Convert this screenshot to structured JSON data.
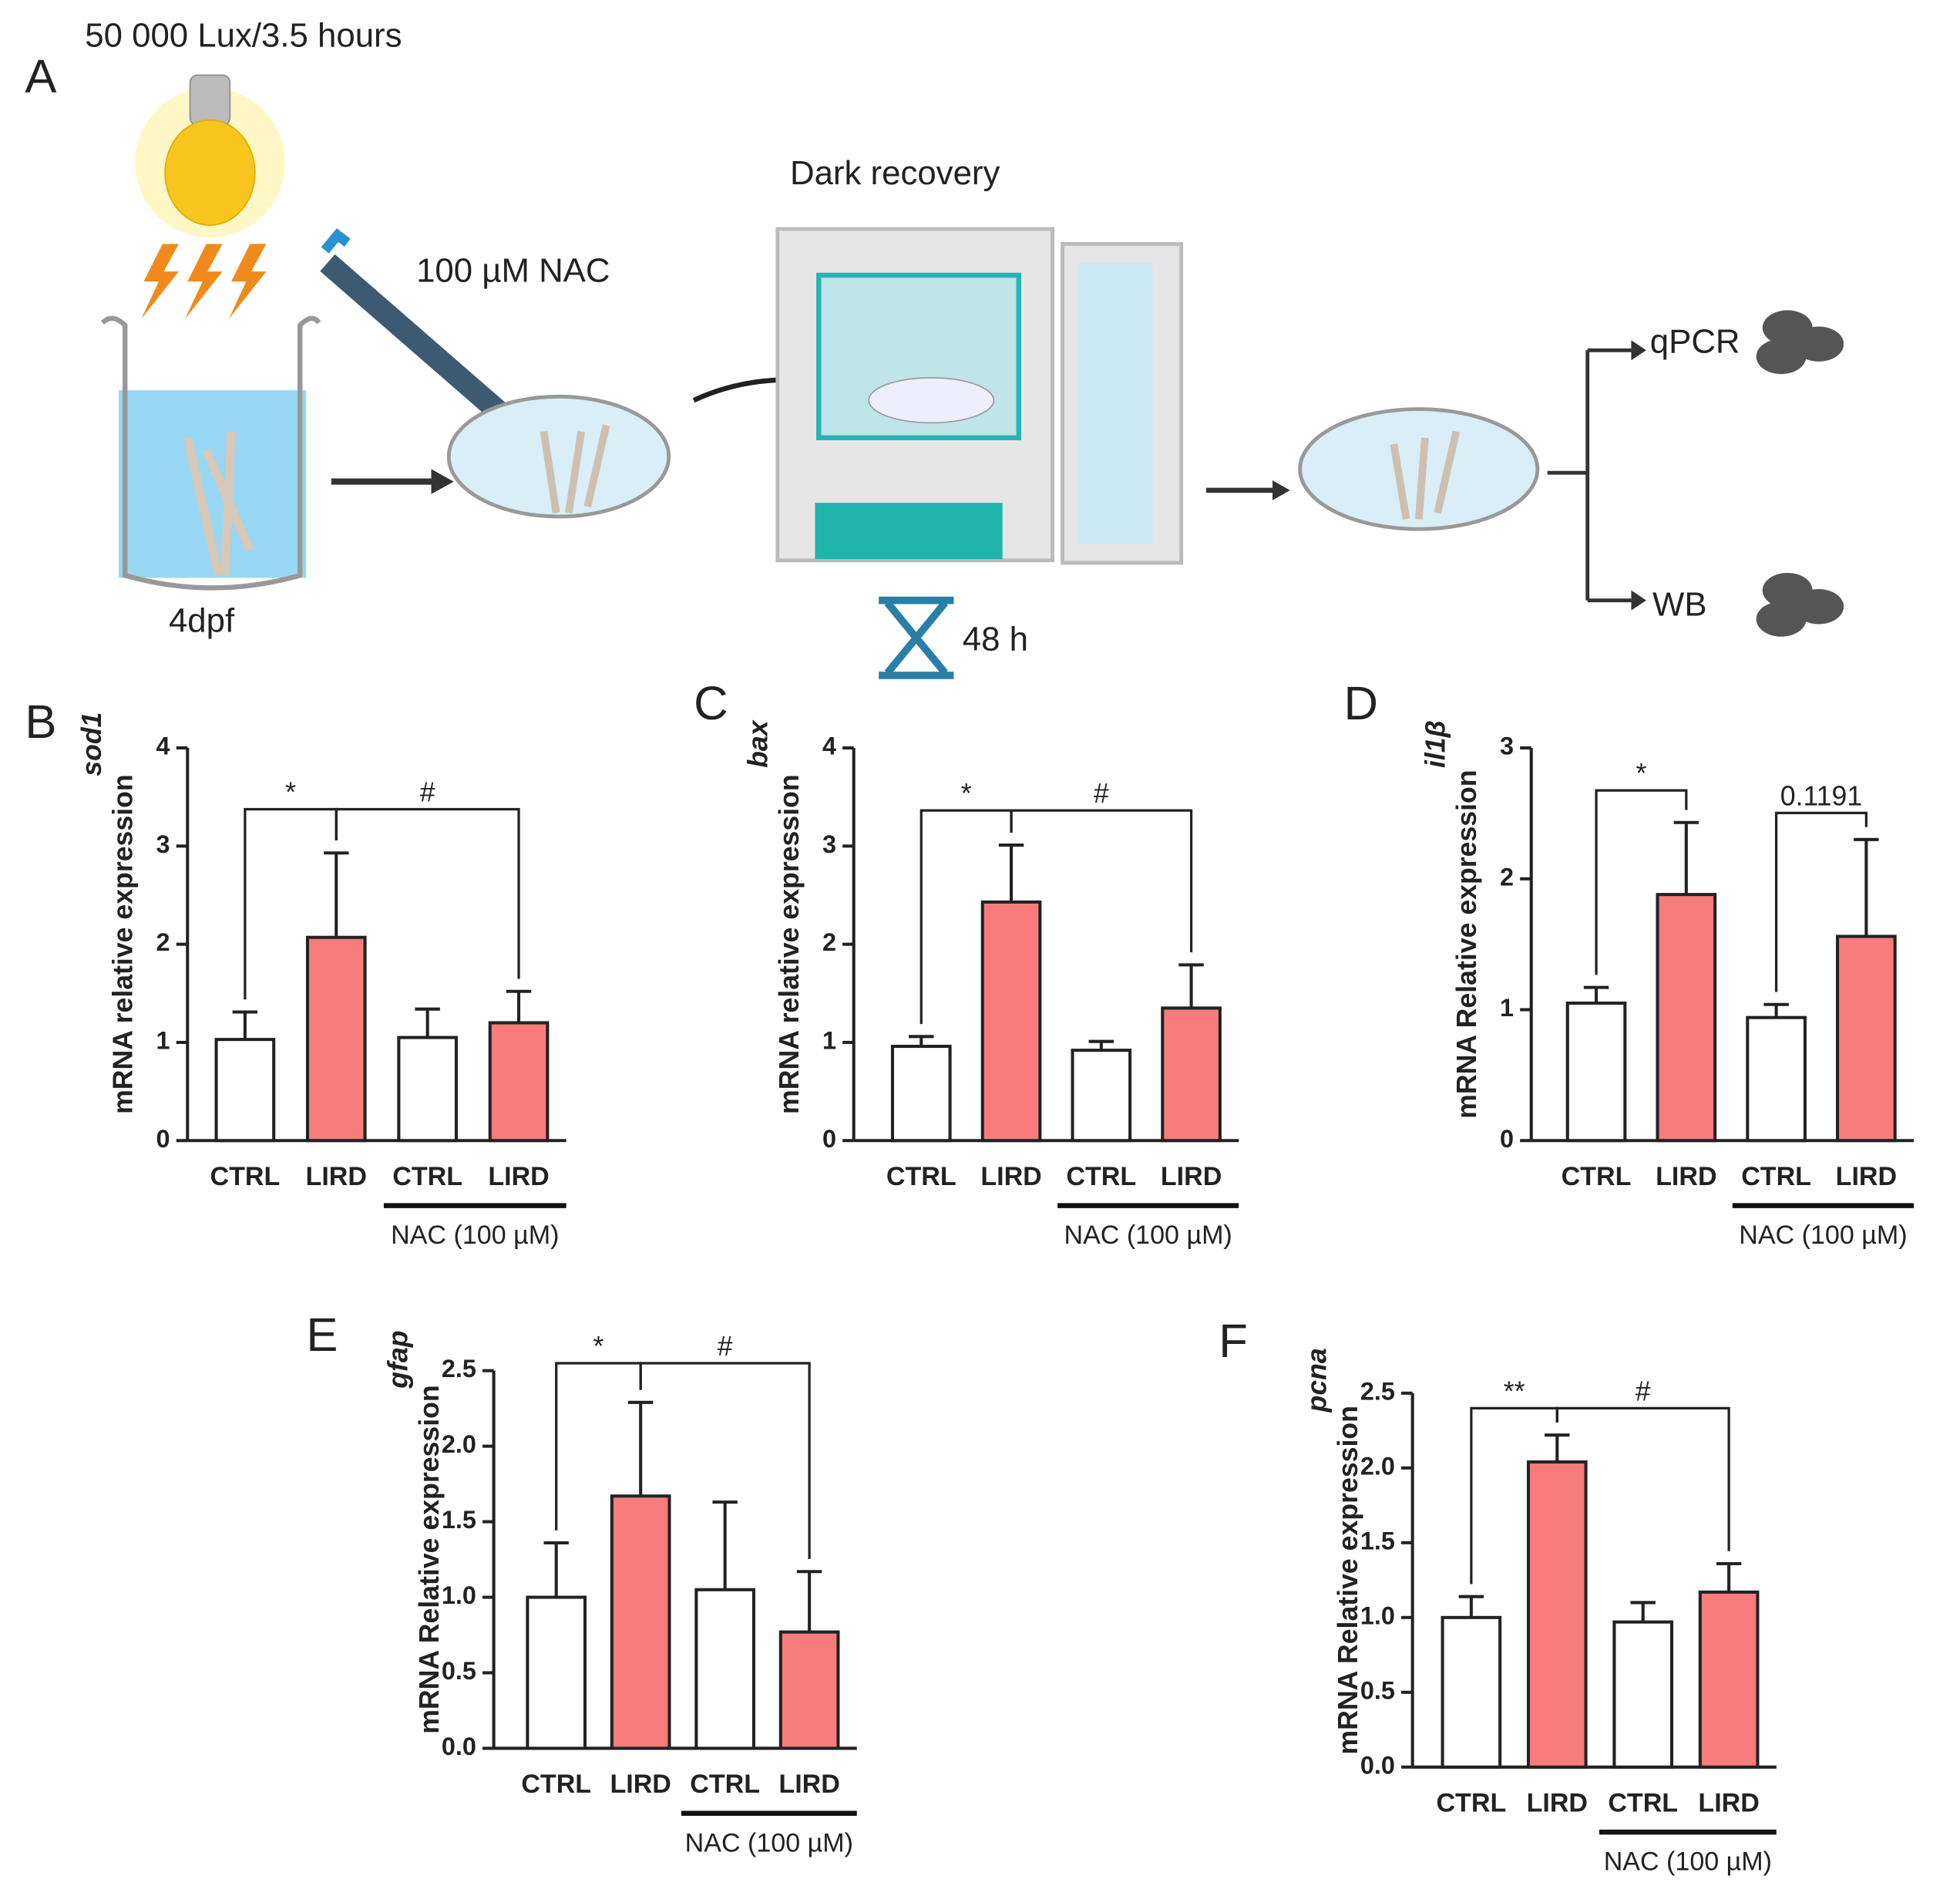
{
  "diagram": {
    "panel_label": "A",
    "light": "50 000 Lux/3.5 hours",
    "age": "4dpf",
    "treatment": "100 µM NAC",
    "recovery": "Dark recovery",
    "duration": "48 h",
    "outputs": [
      "qPCR",
      "WB"
    ]
  },
  "chart_data": [
    {
      "type": "bar",
      "panel_label": "B",
      "ylabel_gene": "sod1",
      "ylabel": "mRNA relative expression",
      "categories": [
        "CTRL",
        "LIRD",
        "CTRL",
        "LIRD"
      ],
      "values": [
        1.03,
        2.07,
        1.05,
        1.2
      ],
      "errors": [
        0.28,
        0.86,
        0.29,
        0.32
      ],
      "colors": [
        "#ffffff",
        "#f87c7c",
        "#ffffff",
        "#f87c7c"
      ],
      "ylim": [
        0,
        4
      ],
      "yticks": [
        0,
        1,
        2,
        3,
        4
      ],
      "group_label": "NAC (100 µM)",
      "annotations": [
        "*",
        "#"
      ]
    },
    {
      "type": "bar",
      "panel_label": "C",
      "ylabel_gene": "bax",
      "ylabel": "mRNA relative expression",
      "categories": [
        "CTRL",
        "LIRD",
        "CTRL",
        "LIRD"
      ],
      "values": [
        0.96,
        2.43,
        0.92,
        1.35
      ],
      "errors": [
        0.1,
        0.58,
        0.09,
        0.44
      ],
      "colors": [
        "#ffffff",
        "#f87c7c",
        "#ffffff",
        "#f87c7c"
      ],
      "ylim": [
        0,
        4
      ],
      "yticks": [
        0,
        1,
        2,
        3,
        4
      ],
      "group_label": "NAC (100 µM)",
      "annotations": [
        "*",
        "#"
      ]
    },
    {
      "type": "bar",
      "panel_label": "D",
      "ylabel_gene": "il1β",
      "ylabel": "mRNA Relative expression",
      "categories": [
        "CTRL",
        "LIRD",
        "CTRL",
        "LIRD"
      ],
      "values": [
        1.05,
        1.88,
        0.94,
        1.56
      ],
      "errors": [
        0.12,
        0.55,
        0.1,
        0.74
      ],
      "colors": [
        "#ffffff",
        "#f87c7c",
        "#ffffff",
        "#f87c7c"
      ],
      "ylim": [
        0,
        3
      ],
      "yticks": [
        0,
        1,
        2,
        3
      ],
      "group_label": "NAC (100 µM)",
      "annotations": [
        "*",
        "0.1191"
      ]
    },
    {
      "type": "bar",
      "panel_label": "E",
      "ylabel_gene": "gfap",
      "ylabel": "mRNA Relative expression",
      "categories": [
        "CTRL",
        "LIRD",
        "CTRL",
        "LIRD"
      ],
      "values": [
        1.0,
        1.67,
        1.05,
        0.77
      ],
      "errors": [
        0.36,
        0.62,
        0.58,
        0.4
      ],
      "colors": [
        "#ffffff",
        "#f87c7c",
        "#ffffff",
        "#f87c7c"
      ],
      "ylim": [
        0,
        2.5
      ],
      "yticks": [
        {
          "value": 0,
          "label": "0.0"
        },
        0.5,
        {
          "value": 1,
          "label": "1.0"
        },
        1.5,
        {
          "value": 2,
          "label": "2.0"
        },
        2.5
      ],
      "group_label": "NAC (100 µM)",
      "annotations": [
        "*",
        "#"
      ]
    },
    {
      "type": "bar",
      "panel_label": "F",
      "ylabel_gene": "pcna",
      "ylabel": "mRNA Relative expression",
      "categories": [
        "CTRL",
        "LIRD",
        "CTRL",
        "LIRD"
      ],
      "values": [
        1.0,
        2.04,
        0.97,
        1.17
      ],
      "errors": [
        0.14,
        0.18,
        0.13,
        0.19
      ],
      "colors": [
        "#ffffff",
        "#f87c7c",
        "#ffffff",
        "#f87c7c"
      ],
      "ylim": [
        0,
        2.5
      ],
      "yticks": [
        {
          "value": 0,
          "label": "0.0"
        },
        0.5,
        {
          "value": 1,
          "label": "1.0"
        },
        1.5,
        {
          "value": 2,
          "label": "2.0"
        },
        2.5
      ],
      "group_label": "NAC (100 µM)",
      "annotations": [
        "**",
        "#"
      ]
    }
  ]
}
